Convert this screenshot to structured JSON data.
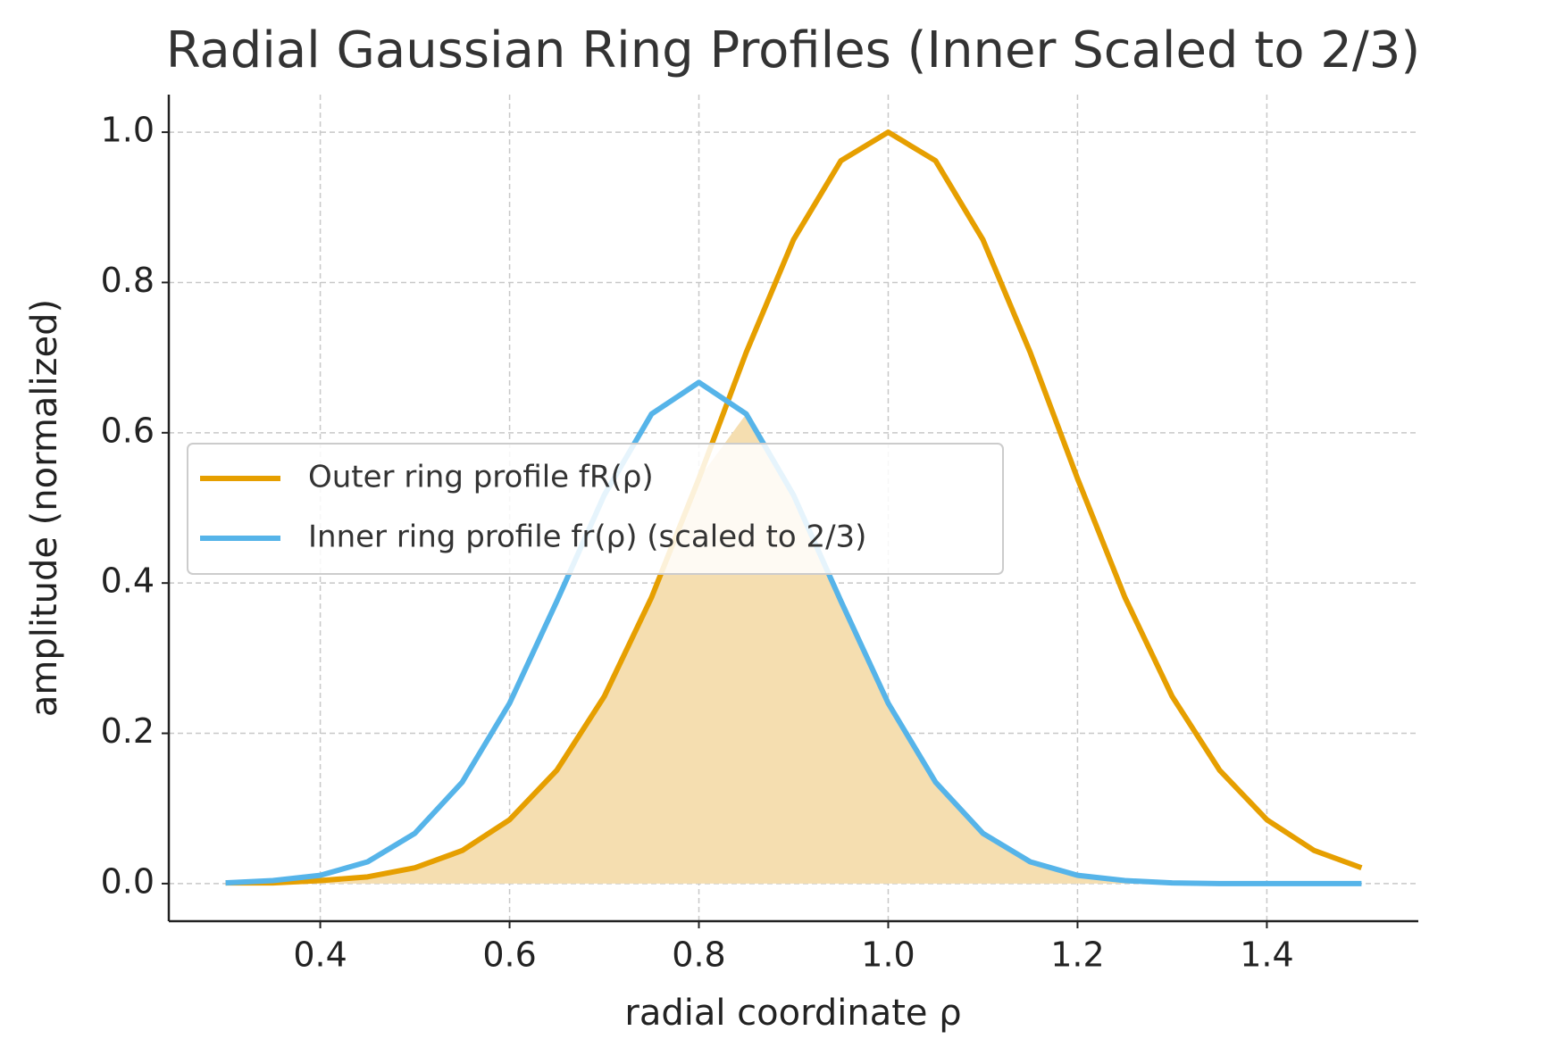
{
  "chart_data": {
    "type": "line",
    "title": "Radial Gaussian Ring Profiles (Inner Scaled to 2/3)",
    "x_label": "radial coordinate ρ",
    "y_label": "amplitude (normalized)",
    "x": [
      0.3,
      0.35,
      0.4,
      0.45,
      0.5,
      0.55,
      0.6,
      0.65,
      0.7,
      0.75,
      0.8,
      0.85,
      0.9,
      0.95,
      1.0,
      1.05,
      1.1,
      1.15,
      1.2,
      1.25,
      1.3,
      1.35,
      1.4,
      1.45,
      1.5
    ],
    "series": [
      {
        "name": "Outer ring profile fR(ρ)",
        "color": "#e69f00",
        "values": [
          0.001,
          0.001,
          0.004,
          0.009,
          0.021,
          0.044,
          0.085,
          0.151,
          0.249,
          0.381,
          0.539,
          0.707,
          0.857,
          0.962,
          1.0,
          0.962,
          0.857,
          0.707,
          0.539,
          0.381,
          0.249,
          0.151,
          0.085,
          0.044,
          0.021
        ]
      },
      {
        "name": "Inner ring profile fr(ρ) (scaled to 2/3)",
        "color": "#56b4e9",
        "values": [
          0.001,
          0.004,
          0.011,
          0.029,
          0.067,
          0.135,
          0.24,
          0.376,
          0.517,
          0.625,
          0.667,
          0.625,
          0.517,
          0.376,
          0.24,
          0.135,
          0.067,
          0.029,
          0.011,
          0.004,
          0.001,
          0.0,
          0.0,
          0.0,
          0.0
        ]
      }
    ],
    "overlap_fill_color": "#f5deb0",
    "xlim": [
      0.24,
      1.56
    ],
    "ylim": [
      -0.05,
      1.05
    ],
    "xticks": [
      0.4,
      0.6,
      0.8,
      1.0,
      1.2,
      1.4
    ],
    "yticks": [
      0.0,
      0.2,
      0.4,
      0.6,
      0.8,
      1.0
    ],
    "grid": true,
    "legend": "center-left"
  }
}
